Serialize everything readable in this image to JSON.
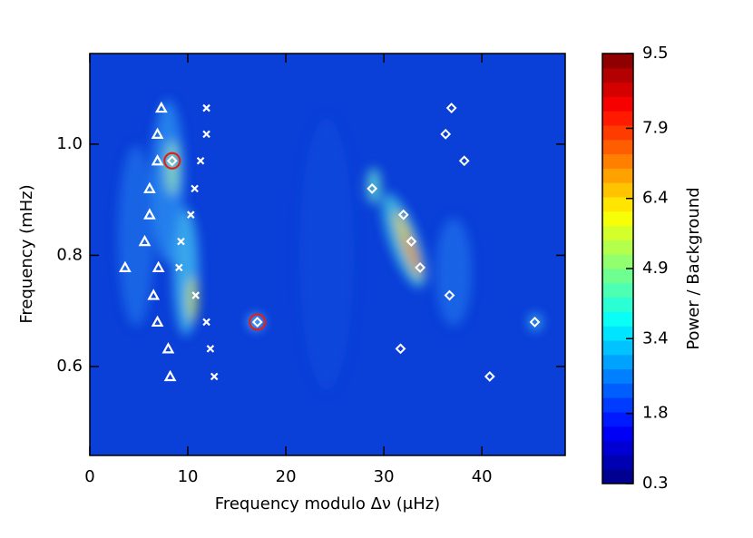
{
  "chart_data": {
    "type": "scatter",
    "xlabel": "Frequency modulo Δν (μHz)",
    "ylabel": "Frequency (mHz)",
    "xlim": [
      0,
      48.5
    ],
    "ylim": [
      0.44,
      1.163
    ],
    "xticks": [
      0,
      10,
      20,
      30,
      40
    ],
    "yticks": [
      0.6,
      0.8,
      {
        "value": 1,
        "label": "1.0"
      }
    ],
    "series": [
      {
        "marker": "triangle",
        "color": "#ffffff",
        "x": [
          7.3,
          6.9,
          6.9,
          6.1,
          6.1,
          5.6,
          3.6,
          7.0,
          6.5,
          6.9,
          8.0,
          8.2
        ],
        "values": [
          1.065,
          1.018,
          0.97,
          0.92,
          0.873,
          0.825,
          0.778,
          0.778,
          0.728,
          0.68,
          0.632,
          0.582
        ]
      },
      {
        "marker": "cross",
        "color": "#ffffff",
        "x": [
          11.9,
          11.9,
          11.3,
          10.7,
          10.3,
          9.3,
          9.1,
          10.8,
          11.9,
          12.3,
          12.7
        ],
        "values": [
          1.065,
          1.018,
          0.97,
          0.92,
          0.873,
          0.825,
          0.778,
          0.728,
          0.68,
          0.632,
          0.582
        ]
      },
      {
        "marker": "diamond",
        "color": "#ffffff",
        "x": [
          36.9,
          36.3,
          38.2,
          8.4,
          28.8,
          32.0,
          32.8,
          33.7,
          36.7,
          17.1,
          45.4,
          31.7,
          40.8
        ],
        "values": [
          1.065,
          1.018,
          0.97,
          0.97,
          0.92,
          0.873,
          0.825,
          0.778,
          0.728,
          0.68,
          0.68,
          0.632,
          0.582
        ]
      },
      {
        "marker": "circle",
        "color": "#e0201b",
        "x": [
          8.4,
          17.1
        ],
        "values": [
          0.97,
          0.68
        ]
      }
    ],
    "colorbar": {
      "label": "Power / Background",
      "lim": [
        0.3,
        9.5
      ],
      "ticks": [
        0.3,
        1.8,
        3.4,
        4.9,
        6.4,
        7.9,
        9.5
      ]
    }
  }
}
